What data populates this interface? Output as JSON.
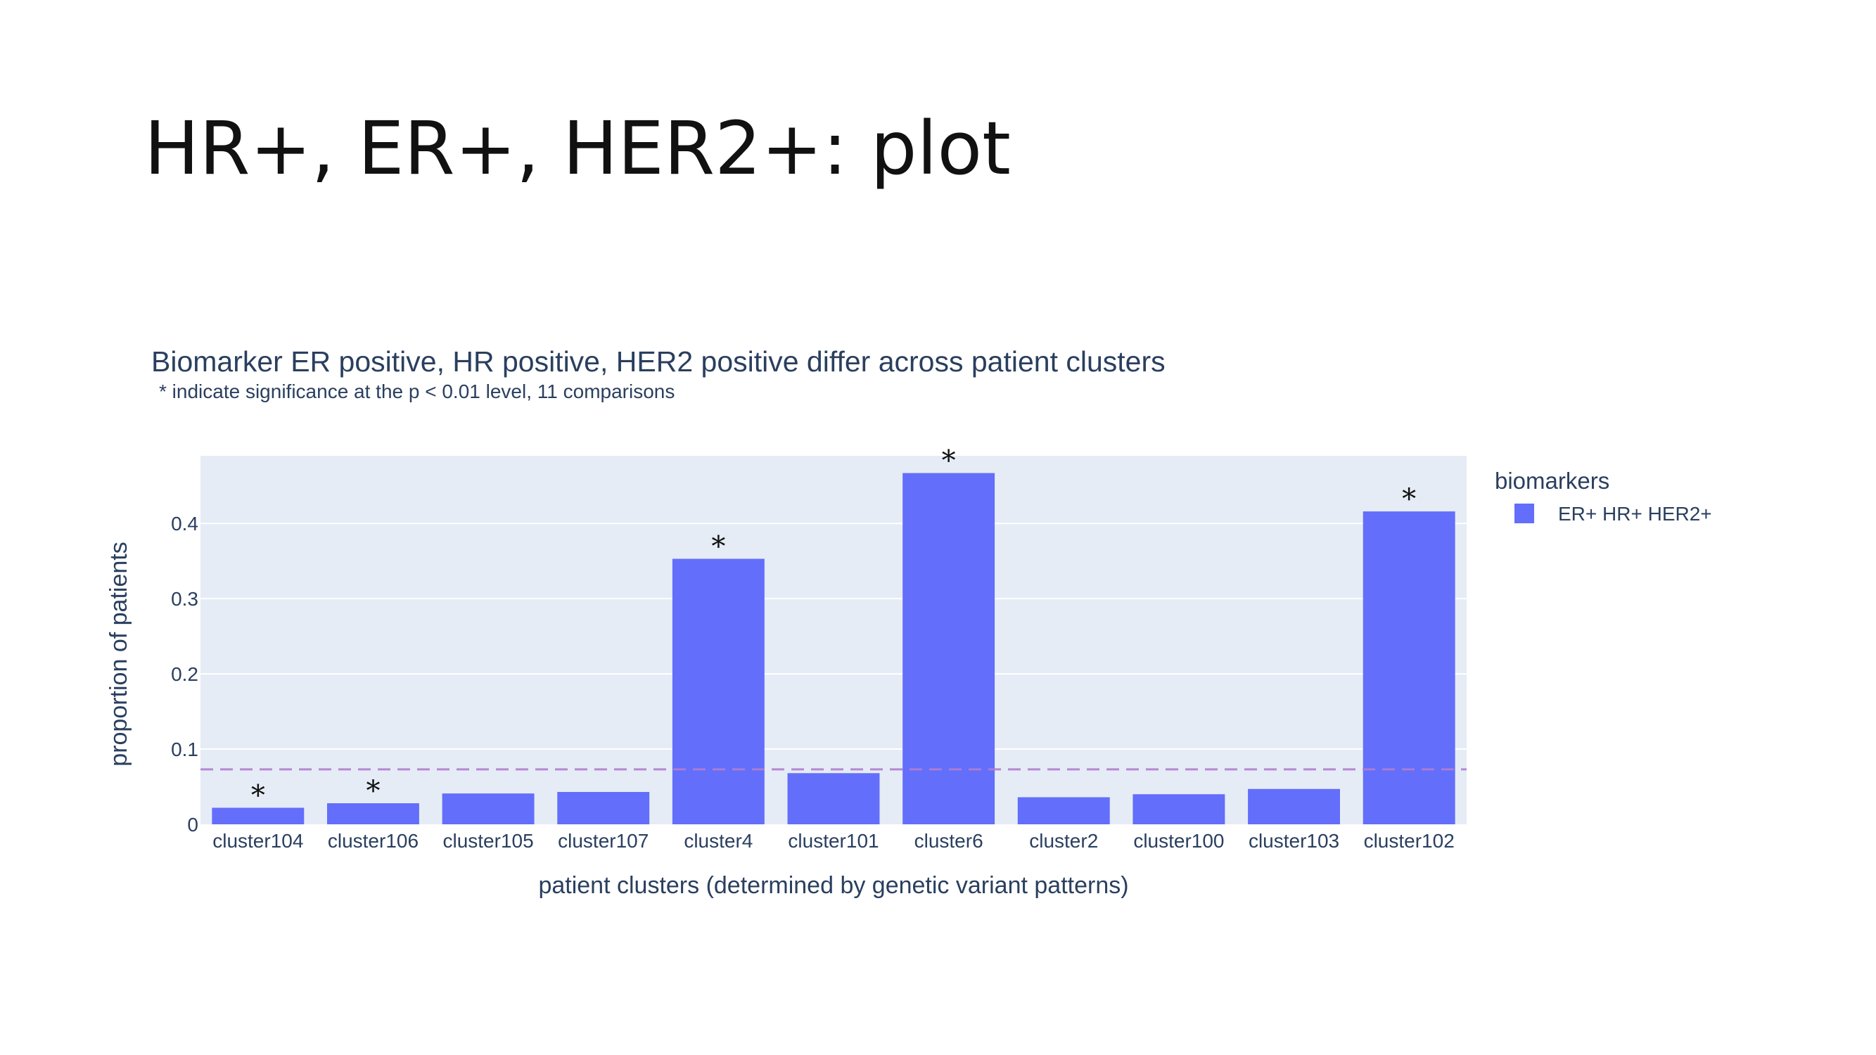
{
  "slide": {
    "title": "HR+, ER+, HER2+: plot"
  },
  "colors": {
    "bar": "#636efa",
    "plot_background": "#e5ecf6",
    "gridline": "#ffffff",
    "reference_line": "#b07dd0",
    "text": "#2a3f5f"
  },
  "chart_data": {
    "type": "bar",
    "title": "Biomarker ER positive, HR positive, HER2 positive differ across patient clusters",
    "subtitle": "* indicate significance at the p < 0.01 level, 11 comparisons",
    "xlabel": "patient clusters (determined by genetic variant patterns)",
    "ylabel": "proportion of patients",
    "categories": [
      "cluster104",
      "cluster106",
      "cluster105",
      "cluster107",
      "cluster4",
      "cluster101",
      "cluster6",
      "cluster2",
      "cluster100",
      "cluster103",
      "cluster102"
    ],
    "series": [
      {
        "name": "ER+ HR+ HER2+",
        "values": [
          0.022,
          0.028,
          0.041,
          0.043,
          0.353,
          0.068,
          0.467,
          0.036,
          0.04,
          0.047,
          0.416
        ]
      }
    ],
    "significant": [
      true,
      true,
      false,
      false,
      true,
      false,
      true,
      false,
      false,
      false,
      true
    ],
    "significance_marker": "*",
    "reference_line": {
      "value": 0.073,
      "style": "dashed"
    },
    "ylim": [
      0,
      0.49
    ],
    "yticks": [
      0,
      0.1,
      0.2,
      0.3,
      0.4
    ],
    "ytick_labels": [
      "0",
      "0.1",
      "0.2",
      "0.3",
      "0.4"
    ],
    "grid": true,
    "legend": {
      "title": "biomarkers",
      "placement": "right"
    }
  }
}
